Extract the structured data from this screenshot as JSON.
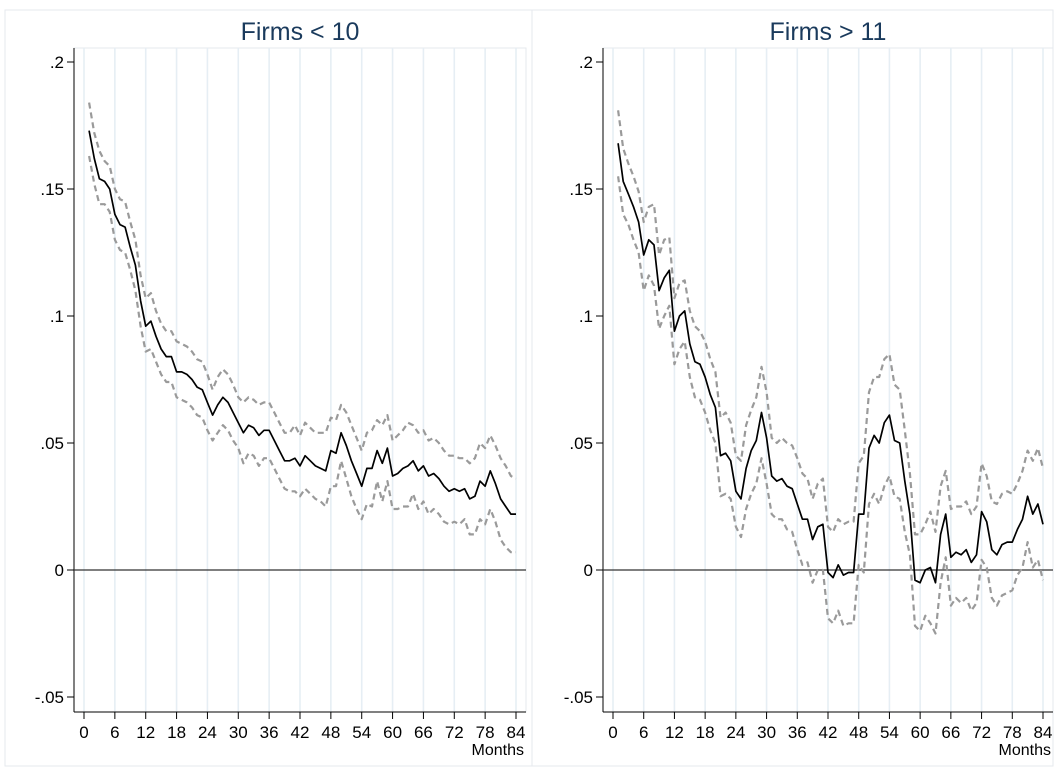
{
  "chart_data": [
    {
      "type": "line",
      "title": "Firms < 10",
      "xlabel": "Months",
      "ylabel": "",
      "xlim": [
        0,
        84
      ],
      "ylim": [
        -0.05,
        0.2
      ],
      "xticks": [
        0,
        6,
        12,
        18,
        24,
        30,
        36,
        42,
        48,
        54,
        60,
        66,
        72,
        78,
        84
      ],
      "yticks": [
        -0.05,
        0,
        0.05,
        0.1,
        0.15,
        0.2
      ],
      "ytick_labels": [
        "-.05",
        "0",
        ".05",
        ".1",
        ".15",
        ".2"
      ],
      "grid": "vertical",
      "reference_line_y": 0,
      "x": [
        1,
        2,
        3,
        4,
        5,
        6,
        7,
        8,
        9,
        10,
        11,
        12,
        13,
        14,
        15,
        16,
        17,
        18,
        19,
        20,
        21,
        22,
        23,
        24,
        25,
        26,
        27,
        28,
        29,
        30,
        31,
        32,
        33,
        34,
        35,
        36,
        37,
        38,
        39,
        40,
        41,
        42,
        43,
        44,
        45,
        46,
        47,
        48,
        49,
        50,
        51,
        52,
        53,
        54,
        55,
        56,
        57,
        58,
        59,
        60,
        61,
        62,
        63,
        64,
        65,
        66,
        67,
        68,
        69,
        70,
        71,
        72,
        73,
        74,
        75,
        76,
        77,
        78,
        79,
        80,
        81,
        82,
        83,
        84
      ],
      "series": [
        {
          "style": "solid",
          "color": "#000000",
          "values": [
            0.173,
            0.162,
            0.154,
            0.153,
            0.15,
            0.14,
            0.136,
            0.135,
            0.127,
            0.12,
            0.106,
            0.096,
            0.098,
            0.092,
            0.087,
            0.084,
            0.084,
            0.078,
            0.078,
            0.077,
            0.075,
            0.072,
            0.071,
            0.066,
            0.061,
            0.065,
            0.068,
            0.066,
            0.062,
            0.058,
            0.054,
            0.057,
            0.056,
            0.053,
            0.055,
            0.055,
            0.051,
            0.047,
            0.043,
            0.043,
            0.044,
            0.041,
            0.045,
            0.043,
            0.041,
            0.04,
            0.039,
            0.047,
            0.046,
            0.054,
            0.049,
            0.043,
            0.038,
            0.033,
            0.04,
            0.04,
            0.047,
            0.042,
            0.048,
            0.037,
            0.038,
            0.04,
            0.041,
            0.043,
            0.039,
            0.041,
            0.037,
            0.038,
            0.036,
            0.033,
            0.031,
            0.032,
            0.031,
            0.032,
            0.028,
            0.029,
            0.035,
            0.033,
            0.039,
            0.034,
            0.028,
            0.025,
            0.022,
            0.022
          ]
        },
        {
          "style": "dashed",
          "color": "#9a9a9a",
          "values": [
            0.184,
            0.172,
            0.165,
            0.161,
            0.159,
            0.15,
            0.146,
            0.145,
            0.137,
            0.13,
            0.116,
            0.107,
            0.109,
            0.102,
            0.097,
            0.094,
            0.094,
            0.09,
            0.089,
            0.088,
            0.086,
            0.083,
            0.082,
            0.077,
            0.071,
            0.076,
            0.079,
            0.077,
            0.073,
            0.068,
            0.066,
            0.068,
            0.067,
            0.065,
            0.066,
            0.066,
            0.062,
            0.058,
            0.054,
            0.054,
            0.057,
            0.053,
            0.058,
            0.056,
            0.054,
            0.054,
            0.054,
            0.06,
            0.059,
            0.065,
            0.062,
            0.057,
            0.052,
            0.047,
            0.054,
            0.055,
            0.059,
            0.057,
            0.061,
            0.051,
            0.053,
            0.055,
            0.058,
            0.057,
            0.054,
            0.055,
            0.051,
            0.052,
            0.05,
            0.047,
            0.045,
            0.045,
            0.044,
            0.044,
            0.042,
            0.044,
            0.05,
            0.048,
            0.053,
            0.049,
            0.044,
            0.041,
            0.037,
            0.036
          ]
        },
        {
          "style": "dashed",
          "color": "#9a9a9a",
          "values": [
            0.163,
            0.152,
            0.144,
            0.144,
            0.141,
            0.13,
            0.126,
            0.125,
            0.118,
            0.11,
            0.096,
            0.086,
            0.087,
            0.082,
            0.077,
            0.074,
            0.074,
            0.068,
            0.067,
            0.066,
            0.064,
            0.061,
            0.06,
            0.055,
            0.051,
            0.054,
            0.057,
            0.055,
            0.051,
            0.048,
            0.042,
            0.046,
            0.045,
            0.041,
            0.044,
            0.044,
            0.04,
            0.036,
            0.032,
            0.031,
            0.031,
            0.029,
            0.032,
            0.03,
            0.028,
            0.027,
            0.025,
            0.033,
            0.033,
            0.043,
            0.036,
            0.029,
            0.024,
            0.02,
            0.026,
            0.025,
            0.035,
            0.027,
            0.035,
            0.024,
            0.024,
            0.025,
            0.025,
            0.03,
            0.024,
            0.027,
            0.022,
            0.024,
            0.022,
            0.019,
            0.018,
            0.019,
            0.018,
            0.02,
            0.014,
            0.014,
            0.02,
            0.018,
            0.024,
            0.019,
            0.012,
            0.009,
            0.007,
            0.007
          ]
        }
      ]
    },
    {
      "type": "line",
      "title": "Firms > 11",
      "xlabel": "Months",
      "ylabel": "",
      "xlim": [
        0,
        84
      ],
      "ylim": [
        -0.05,
        0.2
      ],
      "xticks": [
        0,
        6,
        12,
        18,
        24,
        30,
        36,
        42,
        48,
        54,
        60,
        66,
        72,
        78,
        84
      ],
      "yticks": [
        -0.05,
        0,
        0.05,
        0.1,
        0.15,
        0.2
      ],
      "ytick_labels": [
        "-.05",
        "0",
        ".05",
        ".1",
        ".15",
        ".2"
      ],
      "grid": "vertical",
      "reference_line_y": 0,
      "x": [
        1,
        2,
        3,
        4,
        5,
        6,
        7,
        8,
        9,
        10,
        11,
        12,
        13,
        14,
        15,
        16,
        17,
        18,
        19,
        20,
        21,
        22,
        23,
        24,
        25,
        26,
        27,
        28,
        29,
        30,
        31,
        32,
        33,
        34,
        35,
        36,
        37,
        38,
        39,
        40,
        41,
        42,
        43,
        44,
        45,
        46,
        47,
        48,
        49,
        50,
        51,
        52,
        53,
        54,
        55,
        56,
        57,
        58,
        59,
        60,
        61,
        62,
        63,
        64,
        65,
        66,
        67,
        68,
        69,
        70,
        71,
        72,
        73,
        74,
        75,
        76,
        77,
        78,
        79,
        80,
        81,
        82,
        83,
        84
      ],
      "series": [
        {
          "style": "solid",
          "color": "#000000",
          "values": [
            0.168,
            0.153,
            0.148,
            0.143,
            0.137,
            0.124,
            0.13,
            0.128,
            0.11,
            0.115,
            0.118,
            0.094,
            0.1,
            0.102,
            0.089,
            0.082,
            0.081,
            0.076,
            0.069,
            0.064,
            0.045,
            0.046,
            0.043,
            0.031,
            0.028,
            0.04,
            0.047,
            0.051,
            0.062,
            0.052,
            0.037,
            0.035,
            0.036,
            0.033,
            0.032,
            0.026,
            0.02,
            0.02,
            0.012,
            0.017,
            0.018,
            -0.001,
            -0.003,
            0.002,
            -0.002,
            -0.001,
            -0.001,
            0.022,
            0.022,
            0.048,
            0.053,
            0.05,
            0.058,
            0.061,
            0.051,
            0.05,
            0.035,
            0.022,
            -0.004,
            -0.005,
            0.0,
            0.001,
            -0.005,
            0.014,
            0.022,
            0.005,
            0.007,
            0.006,
            0.008,
            0.003,
            0.006,
            0.023,
            0.019,
            0.008,
            0.006,
            0.01,
            0.011,
            0.011,
            0.016,
            0.02,
            0.029,
            0.022,
            0.026,
            0.018
          ]
        },
        {
          "style": "dashed",
          "color": "#9a9a9a",
          "values": [
            0.181,
            0.166,
            0.16,
            0.155,
            0.149,
            0.137,
            0.143,
            0.144,
            0.124,
            0.13,
            0.131,
            0.107,
            0.113,
            0.114,
            0.102,
            0.096,
            0.094,
            0.09,
            0.083,
            0.078,
            0.06,
            0.062,
            0.058,
            0.045,
            0.043,
            0.057,
            0.063,
            0.068,
            0.08,
            0.07,
            0.052,
            0.05,
            0.052,
            0.05,
            0.049,
            0.044,
            0.038,
            0.036,
            0.028,
            0.034,
            0.036,
            0.017,
            0.015,
            0.02,
            0.018,
            0.019,
            0.019,
            0.042,
            0.045,
            0.07,
            0.076,
            0.076,
            0.083,
            0.085,
            0.073,
            0.071,
            0.055,
            0.038,
            0.014,
            0.014,
            0.018,
            0.023,
            0.015,
            0.033,
            0.039,
            0.024,
            0.025,
            0.025,
            0.027,
            0.022,
            0.025,
            0.042,
            0.037,
            0.027,
            0.026,
            0.03,
            0.031,
            0.03,
            0.034,
            0.039,
            0.047,
            0.043,
            0.048,
            0.04
          ]
        },
        {
          "style": "dashed",
          "color": "#9a9a9a",
          "values": [
            0.155,
            0.14,
            0.136,
            0.13,
            0.125,
            0.11,
            0.116,
            0.112,
            0.095,
            0.1,
            0.104,
            0.081,
            0.087,
            0.09,
            0.076,
            0.068,
            0.067,
            0.062,
            0.055,
            0.05,
            0.029,
            0.03,
            0.028,
            0.017,
            0.013,
            0.024,
            0.03,
            0.034,
            0.044,
            0.034,
            0.022,
            0.02,
            0.02,
            0.016,
            0.015,
            0.008,
            0.002,
            0.003,
            -0.005,
            0.0,
            0.0,
            -0.019,
            -0.021,
            -0.016,
            -0.022,
            -0.021,
            -0.021,
            0.002,
            -0.001,
            0.026,
            0.03,
            0.026,
            0.033,
            0.037,
            0.029,
            0.028,
            0.015,
            0.006,
            -0.022,
            -0.024,
            -0.018,
            -0.021,
            -0.025,
            -0.005,
            0.005,
            -0.014,
            -0.011,
            -0.013,
            -0.011,
            -0.016,
            -0.013,
            0.004,
            0.001,
            -0.011,
            -0.014,
            -0.01,
            -0.009,
            -0.008,
            -0.002,
            0.001,
            0.011,
            0.001,
            0.004,
            -0.004
          ]
        }
      ]
    }
  ]
}
